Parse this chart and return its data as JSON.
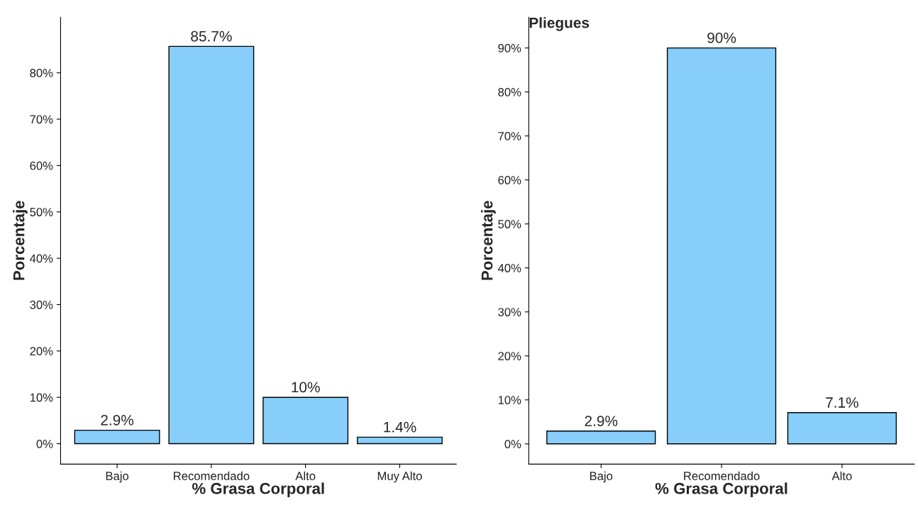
{
  "chart_data": [
    {
      "type": "bar",
      "xlabel": "% Grasa Corporal",
      "ylabel": "Porcentaje",
      "categories": [
        "Bajo",
        "Recomendado",
        "Alto",
        "Muy Alto"
      ],
      "values": [
        2.9,
        85.7,
        10,
        1.4
      ],
      "value_labels": [
        "2.9%",
        "85.7%",
        "10%",
        "1.4%"
      ],
      "color": "#87cefa",
      "ylim": [
        -4.4,
        92
      ],
      "yticks": [
        {
          "value": 0,
          "label": "0%"
        },
        {
          "value": 10,
          "label": "10%"
        },
        {
          "value": 20,
          "label": "20%"
        },
        {
          "value": 30,
          "label": "30%"
        },
        {
          "value": 40,
          "label": "40%"
        },
        {
          "value": 50,
          "label": "50%"
        },
        {
          "value": 60,
          "label": "60%"
        },
        {
          "value": 70,
          "label": "70%"
        },
        {
          "value": 80,
          "label": "80%"
        }
      ],
      "grid": false,
      "legend": false
    },
    {
      "type": "bar",
      "title": "Pliegues",
      "xlabel": "% Grasa Corporal",
      "ylabel": "Porcentaje",
      "categories": [
        "Bajo",
        "Recomendado",
        "Alto"
      ],
      "values": [
        2.9,
        90,
        7.1
      ],
      "value_labels": [
        "2.9%",
        "90%",
        "7.1%"
      ],
      "color": "#87cefa",
      "ylim": [
        -4.6,
        97
      ],
      "yticks": [
        {
          "value": 0,
          "label": "0%"
        },
        {
          "value": 10,
          "label": "10%"
        },
        {
          "value": 20,
          "label": "20%"
        },
        {
          "value": 30,
          "label": "30%"
        },
        {
          "value": 40,
          "label": "40%"
        },
        {
          "value": 50,
          "label": "50%"
        },
        {
          "value": 60,
          "label": "60%"
        },
        {
          "value": 70,
          "label": "70%"
        },
        {
          "value": 80,
          "label": "80%"
        },
        {
          "value": 90,
          "label": "90%"
        }
      ],
      "grid": false,
      "legend": false
    }
  ]
}
